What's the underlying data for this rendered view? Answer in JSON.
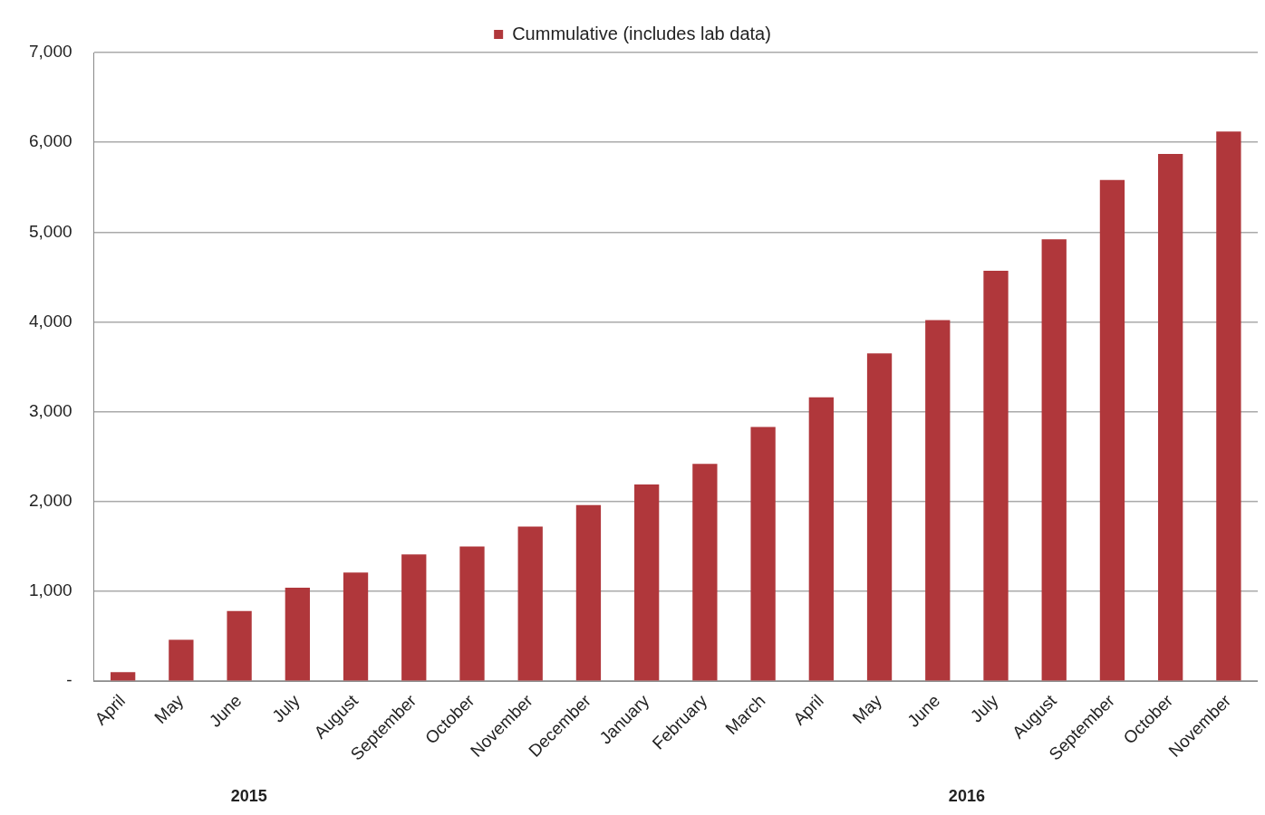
{
  "chart_data": {
    "type": "bar",
    "categories": [
      "April",
      "May",
      "June",
      "July",
      "August",
      "September",
      "October",
      "November",
      "December",
      "January",
      "February",
      "March",
      "April",
      "May",
      "June",
      "July",
      "August",
      "September",
      "October",
      "November"
    ],
    "series": [
      {
        "name": "Cummulative (includes lab data)",
        "color": "#b0373b",
        "values": [
          100,
          460,
          780,
          1040,
          1210,
          1410,
          1500,
          1720,
          1960,
          2190,
          2420,
          2830,
          3160,
          3650,
          4020,
          4570,
          4920,
          5580,
          5870,
          6120
        ]
      }
    ],
    "ylim": [
      0,
      7000
    ],
    "yticks": [
      {
        "value": 0,
        "label": "-"
      },
      {
        "value": 1000,
        "label": "1,000"
      },
      {
        "value": 2000,
        "label": "2,000"
      },
      {
        "value": 3000,
        "label": "3,000"
      },
      {
        "value": 4000,
        "label": "4,000"
      },
      {
        "value": 5000,
        "label": "5,000"
      },
      {
        "value": 6000,
        "label": "6,000"
      },
      {
        "value": 7000,
        "label": "7,000"
      }
    ],
    "grid": "y",
    "legend": "top",
    "annotations": [
      "2015",
      "2016"
    ]
  }
}
